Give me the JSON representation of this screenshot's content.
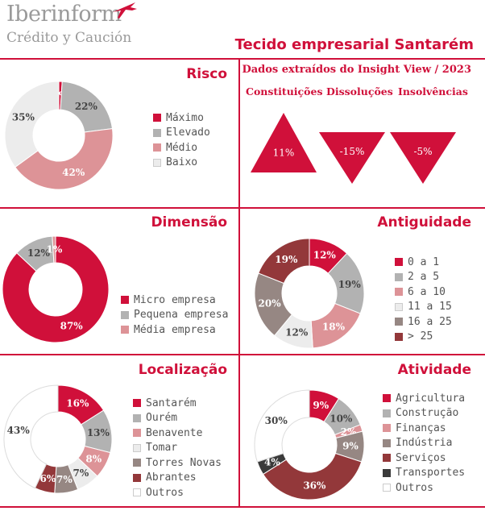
{
  "header": {
    "logo_name": "Iberinform",
    "logo_sub": "Crédito y Caución",
    "title": "Tecido empresarial Santarém"
  },
  "colors": {
    "accent": "#d0103a",
    "red": "#d0103a",
    "gray": "#b2b2b2",
    "pink": "#dd9397",
    "lightgray": "#ececec",
    "brownish": "#968783",
    "darkred": "#93383a",
    "charcoal": "#3a3a3a",
    "white": "#ffffff"
  },
  "sections": {
    "risco": "Risco",
    "dimensao": "Dimensão",
    "antiguidade": "Antiguidade",
    "localizacao": "Localização",
    "atividade": "Atividade"
  },
  "insight": {
    "subtitle": "Dados extraídos do Insight View / 2023",
    "columns": [
      "Constituições",
      "Dissoluções",
      "Insolvências"
    ]
  },
  "chart_data": [
    {
      "id": "risco",
      "type": "pie",
      "title": "Risco",
      "series": [
        {
          "name": "Máximo",
          "value": 1,
          "label": "1%",
          "color": "#d0103a"
        },
        {
          "name": "Elevado",
          "value": 22,
          "label": "22%",
          "color": "#b2b2b2"
        },
        {
          "name": "Médio",
          "value": 42,
          "label": "42%",
          "color": "#dd9397"
        },
        {
          "name": "Baixo",
          "value": 35,
          "label": "35%",
          "color": "#ececec"
        }
      ]
    },
    {
      "id": "dimensao",
      "type": "pie",
      "title": "Dimensão",
      "series": [
        {
          "name": "Micro empresa",
          "value": 87,
          "label": "87%",
          "color": "#d0103a"
        },
        {
          "name": "Pequena empresa",
          "value": 12,
          "label": "12%",
          "color": "#b2b2b2"
        },
        {
          "name": "Média empresa",
          "value": 1,
          "label": "1%",
          "color": "#dd9397"
        }
      ]
    },
    {
      "id": "antiguidade",
      "type": "pie",
      "title": "Antiguidade",
      "series": [
        {
          "name": "0 a 1",
          "value": 12,
          "label": "12%",
          "color": "#d0103a"
        },
        {
          "name": "2 a 5",
          "value": 19,
          "label": "19%",
          "color": "#b2b2b2"
        },
        {
          "name": "6 a 10",
          "value": 18,
          "label": "18%",
          "color": "#dd9397"
        },
        {
          "name": "11 a 15",
          "value": 12,
          "label": "12%",
          "color": "#ececec"
        },
        {
          "name": "16 a 25",
          "value": 20,
          "label": "20%",
          "color": "#968783"
        },
        {
          "name": "> 25",
          "value": 19,
          "label": "19%",
          "color": "#93383a"
        }
      ]
    },
    {
      "id": "localizacao",
      "type": "pie",
      "title": "Localização",
      "series": [
        {
          "name": "Santarém",
          "value": 16,
          "label": "16%",
          "color": "#d0103a"
        },
        {
          "name": "Ourém",
          "value": 13,
          "label": "13%",
          "color": "#b2b2b2"
        },
        {
          "name": "Benavente",
          "value": 8,
          "label": "8%",
          "color": "#dd9397"
        },
        {
          "name": "Tomar",
          "value": 7,
          "label": "7%",
          "color": "#ececec"
        },
        {
          "name": "Torres Novas",
          "value": 7,
          "label": "7%",
          "color": "#968783"
        },
        {
          "name": "Abrantes",
          "value": 6,
          "label": "6%",
          "color": "#93383a"
        },
        {
          "name": "Outros",
          "value": 43,
          "label": "43%",
          "color": "#ffffff"
        }
      ]
    },
    {
      "id": "atividade",
      "type": "pie",
      "title": "Atividade",
      "series": [
        {
          "name": "Agricultura",
          "value": 9,
          "label": "9%",
          "color": "#d0103a"
        },
        {
          "name": "Construção",
          "value": 10,
          "label": "10%",
          "color": "#b2b2b2"
        },
        {
          "name": "Finanças",
          "value": 2,
          "label": "2%",
          "color": "#dd9397"
        },
        {
          "name": "Indústria",
          "value": 9,
          "label": "9%",
          "color": "#968783"
        },
        {
          "name": "Serviços",
          "value": 36,
          "label": "36%",
          "color": "#93383a"
        },
        {
          "name": "Transportes",
          "value": 4,
          "label": "4%",
          "color": "#3a3a3a"
        },
        {
          "name": "Outros",
          "value": 30,
          "label": "30%",
          "color": "#ffffff"
        }
      ]
    },
    {
      "id": "insight",
      "type": "bar",
      "categories": [
        "Constituições",
        "Dissoluções",
        "Insolvências"
      ],
      "values": [
        11,
        -15,
        -5
      ],
      "labels": [
        "11%",
        "-15%",
        "-5%"
      ]
    }
  ]
}
